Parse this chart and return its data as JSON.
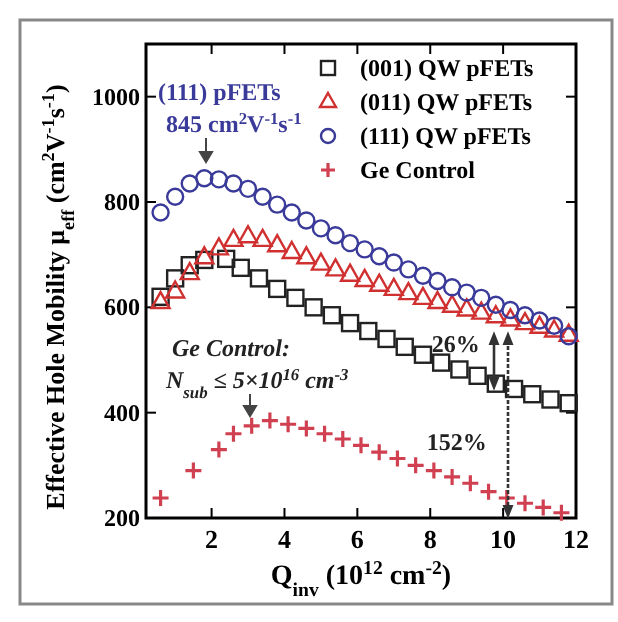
{
  "chart_data": {
    "type": "scatter",
    "xlabel": "Q$_{inv}$ (10$^{12}$ cm$^{-2}$)",
    "ylabel": "Effective Hole Mobility μ$_{eff}$ (cm$^{2}$V$^{-1}$s$^{-1}$)",
    "xlim": [
      0.2,
      12
    ],
    "xticks": [
      2,
      4,
      6,
      8,
      10,
      12
    ],
    "ylim": [
      200,
      1100
    ],
    "yticks": [
      200,
      400,
      600,
      800,
      1000
    ],
    "grid": false,
    "legend": "top right",
    "annotations": [
      "(111) pFETs",
      "845 cm$^{2}$V$^{-1}$s$^{-1}$",
      "Ge Control:",
      "N$_{sub}$ ≤ 5×10$^{16}$ cm$^{-3}$",
      {
        "text": "26%",
        "x": 9.8,
        "y": 455
      },
      {
        "text": "152%",
        "x": 10.1,
        "y": 238
      }
    ],
    "series": [
      {
        "name": "(001) QW pFETs",
        "color": "#222222",
        "marker": "square",
        "x": [
          0.6,
          1.0,
          1.4,
          1.8,
          2.4,
          2.8,
          3.3,
          3.8,
          4.3,
          4.8,
          5.3,
          5.8,
          6.3,
          6.8,
          7.3,
          7.8,
          8.3,
          8.8,
          9.3,
          9.8,
          10.3,
          10.8,
          11.3,
          11.8
        ],
        "values": [
          620,
          655,
          680,
          690,
          692,
          675,
          655,
          635,
          618,
          600,
          585,
          570,
          555,
          540,
          525,
          510,
          495,
          482,
          470,
          455,
          445,
          435,
          425,
          418
        ]
      },
      {
        "name": "(011) QW pFETs",
        "color": "#d03030",
        "marker": "triangle",
        "x": [
          0.6,
          1.0,
          1.4,
          1.8,
          2.2,
          2.6,
          3.0,
          3.4,
          3.8,
          4.2,
          4.6,
          5.0,
          5.4,
          5.8,
          6.2,
          6.6,
          7.0,
          7.4,
          7.8,
          8.2,
          8.6,
          9.0,
          9.4,
          9.8,
          10.2,
          10.6,
          11.0,
          11.4,
          11.8
        ],
        "values": [
          610,
          630,
          665,
          695,
          712,
          728,
          735,
          728,
          718,
          705,
          695,
          683,
          672,
          662,
          652,
          643,
          635,
          627,
          618,
          610,
          603,
          596,
          590,
          583,
          577,
          570,
          563,
          556,
          548
        ]
      },
      {
        "name": "(111) QW pFETs",
        "color": "#3a3a9a",
        "marker": "circle",
        "x": [
          0.6,
          1.0,
          1.4,
          1.8,
          2.2,
          2.6,
          3.0,
          3.4,
          3.8,
          4.2,
          4.6,
          5.0,
          5.4,
          5.8,
          6.2,
          6.6,
          7.0,
          7.4,
          7.8,
          8.2,
          8.6,
          9.0,
          9.4,
          9.8,
          10.2,
          10.6,
          11.0,
          11.4,
          11.8
        ],
        "values": [
          780,
          810,
          835,
          845,
          843,
          835,
          825,
          810,
          795,
          780,
          765,
          750,
          737,
          722,
          710,
          697,
          685,
          672,
          660,
          650,
          638,
          628,
          618,
          605,
          595,
          585,
          575,
          565,
          545
        ]
      },
      {
        "name": "Ge Control",
        "color": "#d04050",
        "marker": "cross",
        "x": [
          0.6,
          1.5,
          2.2,
          2.6,
          3.1,
          3.6,
          4.1,
          4.6,
          5.1,
          5.6,
          6.1,
          6.6,
          7.1,
          7.6,
          8.1,
          8.6,
          9.1,
          9.6,
          10.1,
          10.6,
          11.1,
          11.6
        ],
        "values": [
          238,
          290,
          330,
          360,
          375,
          385,
          378,
          370,
          360,
          350,
          338,
          325,
          313,
          300,
          290,
          278,
          266,
          250,
          238,
          228,
          220,
          210
        ]
      }
    ]
  }
}
